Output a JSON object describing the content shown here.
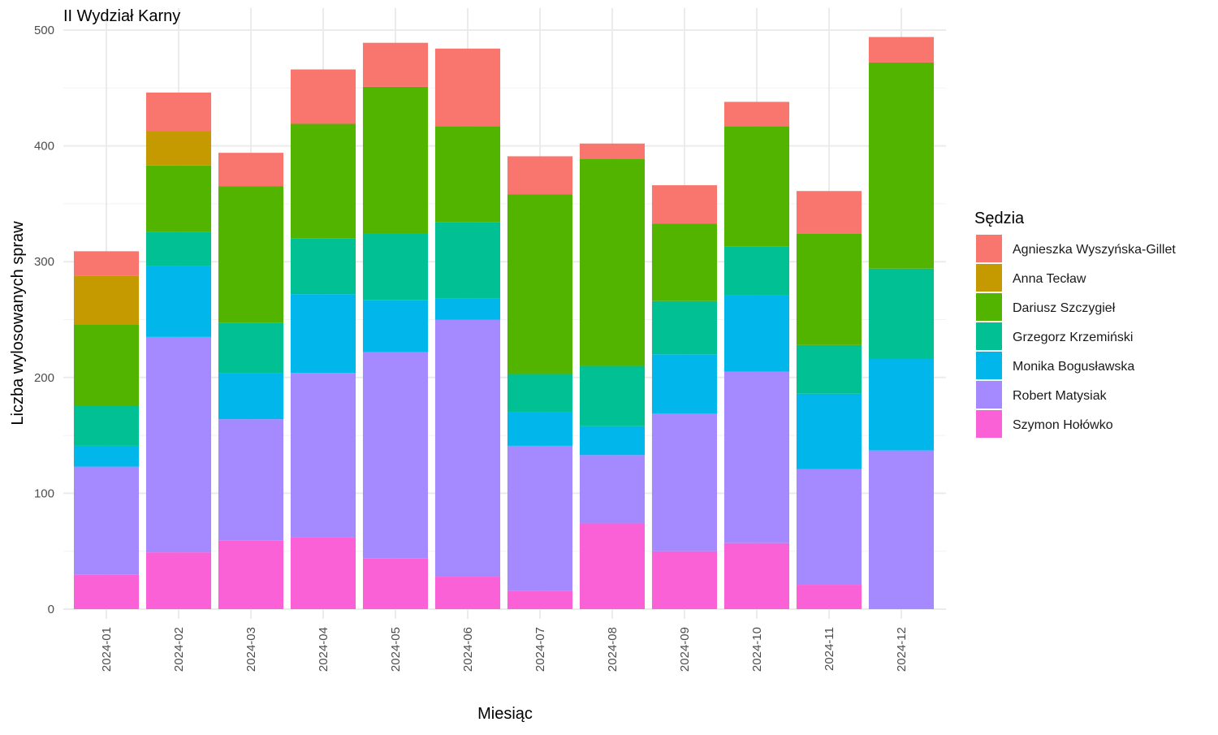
{
  "chart_data": {
    "type": "bar",
    "stacked": true,
    "title": "II Wydział Karny",
    "xlabel": "Miesiąc",
    "ylabel": "Liczba wylosowanych spraw",
    "ylim": [
      0,
      500
    ],
    "yticks": [
      0,
      100,
      200,
      300,
      400,
      500
    ],
    "grid": true,
    "legend_title": "Sędzia",
    "legend_position": "right",
    "categories": [
      "2024-01",
      "2024-02",
      "2024-03",
      "2024-04",
      "2024-05",
      "2024-06",
      "2024-07",
      "2024-08",
      "2024-09",
      "2024-10",
      "2024-11",
      "2024-12"
    ],
    "series": [
      {
        "name": "Agnieszka Wyszyńska-Gillet",
        "color": "#F8766D",
        "values": [
          21,
          33,
          29,
          47,
          38,
          67,
          33,
          13,
          33,
          21,
          37,
          22
        ]
      },
      {
        "name": "Anna Tecław",
        "color": "#C49A00",
        "values": [
          42,
          30,
          0,
          0,
          0,
          0,
          0,
          0,
          0,
          0,
          0,
          0
        ]
      },
      {
        "name": "Dariusz Szczygieł",
        "color": "#53B400",
        "values": [
          70,
          57,
          118,
          99,
          127,
          83,
          155,
          179,
          67,
          104,
          96,
          178
        ]
      },
      {
        "name": "Grzegorz Krzemiński",
        "color": "#00C094",
        "values": [
          35,
          30,
          43,
          48,
          57,
          66,
          33,
          52,
          46,
          42,
          42,
          78
        ]
      },
      {
        "name": "Monika Bogusławska",
        "color": "#00B6EB",
        "values": [
          18,
          61,
          40,
          68,
          45,
          18,
          29,
          25,
          51,
          66,
          65,
          79
        ]
      },
      {
        "name": "Robert Matysiak",
        "color": "#A58AFF",
        "values": [
          93,
          186,
          105,
          142,
          178,
          222,
          125,
          59,
          119,
          148,
          100,
          137
        ]
      },
      {
        "name": "Szymon Hołówko",
        "color": "#FB61D7",
        "values": [
          30,
          49,
          59,
          62,
          44,
          28,
          16,
          74,
          50,
          57,
          21,
          0
        ]
      }
    ]
  }
}
